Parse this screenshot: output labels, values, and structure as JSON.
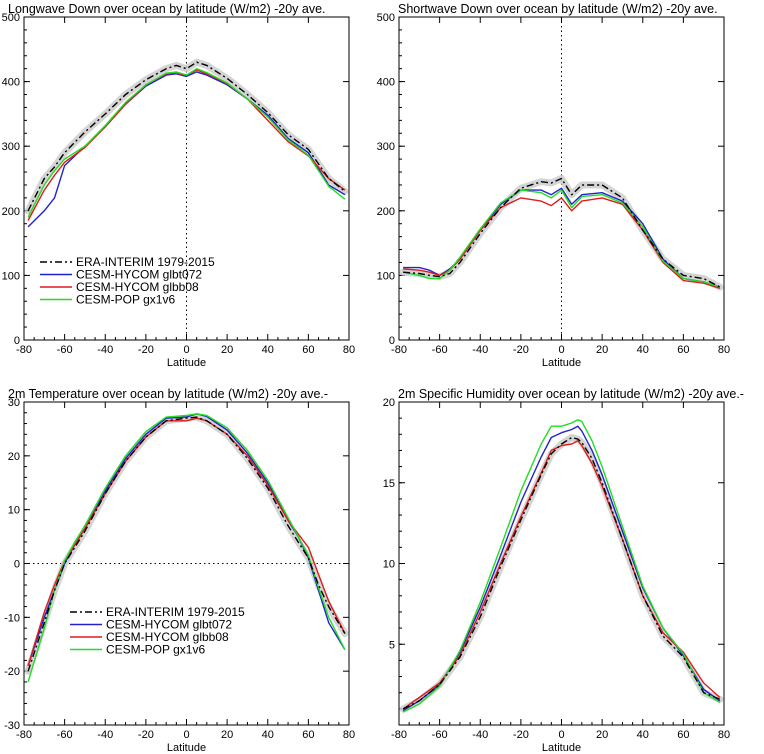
{
  "colors": {
    "era": "#000000",
    "era_band": "#c9c9c9",
    "glbt072": "#2222cc",
    "glbb08": "#e01b1b",
    "gx1v6": "#22dd22",
    "axis": "#000000"
  },
  "chart_data": [
    {
      "type": "line",
      "title": "Longwave Down over ocean by latitude (W/m2) -20y ave.",
      "xlabel": "Latitude",
      "ylabel": "",
      "xlim": [
        -80,
        80
      ],
      "ylim": [
        0,
        500
      ],
      "xticks": [
        -80,
        -60,
        -40,
        -20,
        0,
        20,
        40,
        60,
        80
      ],
      "yticks": [
        0,
        100,
        200,
        300,
        400,
        500
      ],
      "ref_vline": 0,
      "legend": {
        "placement": "lower-left",
        "entries": [
          "ERA-INTERIM 1979-2015",
          "CESM-HYCOM glbt072",
          "CESM-HYCOM glbb08",
          "CESM-POP gx1v6"
        ]
      },
      "x": [
        -78,
        -70,
        -65,
        -60,
        -50,
        -40,
        -30,
        -20,
        -10,
        -5,
        0,
        5,
        10,
        20,
        30,
        40,
        50,
        60,
        70,
        78
      ],
      "series": [
        {
          "name": "ERA-INTERIM 1979-2015",
          "style": "dashdot",
          "key": "era",
          "values": [
            200,
            250,
            268,
            290,
            322,
            350,
            380,
            403,
            420,
            425,
            420,
            430,
            425,
            405,
            380,
            352,
            318,
            295,
            250,
            230
          ]
        },
        {
          "name": "CESM-HYCOM glbt072",
          "style": "solid",
          "key": "glbt072",
          "values": [
            175,
            200,
            220,
            270,
            300,
            330,
            365,
            393,
            410,
            412,
            408,
            415,
            410,
            395,
            373,
            348,
            312,
            290,
            240,
            225
          ]
        },
        {
          "name": "CESM-HYCOM glbb08",
          "style": "solid",
          "key": "glbb08",
          "values": [
            185,
            232,
            255,
            275,
            298,
            330,
            365,
            395,
            412,
            413,
            410,
            418,
            412,
            397,
            373,
            340,
            307,
            285,
            250,
            232
          ]
        },
        {
          "name": "CESM-POP gx1v6",
          "style": "solid",
          "key": "gx1v6",
          "values": [
            190,
            240,
            262,
            280,
            300,
            332,
            368,
            395,
            413,
            415,
            410,
            420,
            414,
            398,
            373,
            345,
            310,
            286,
            238,
            218
          ]
        }
      ]
    },
    {
      "type": "line",
      "title": "Shortwave Down over ocean by latitude (W/m2) -20y ave.",
      "xlabel": "Latitude",
      "ylabel": "",
      "xlim": [
        -80,
        80
      ],
      "ylim": [
        0,
        500
      ],
      "xticks": [
        -80,
        -60,
        -40,
        -20,
        0,
        20,
        40,
        60,
        80
      ],
      "yticks": [
        0,
        100,
        200,
        300,
        400,
        500
      ],
      "ref_vline": 0,
      "x": [
        -78,
        -70,
        -65,
        -60,
        -55,
        -50,
        -40,
        -30,
        -20,
        -10,
        -5,
        0,
        5,
        10,
        20,
        30,
        40,
        50,
        60,
        70,
        78
      ],
      "series": [
        {
          "name": "ERA-INTERIM 1979-2015",
          "style": "dashdot",
          "key": "era",
          "values": [
            105,
            103,
            100,
            98,
            103,
            120,
            165,
            205,
            235,
            245,
            243,
            250,
            225,
            240,
            240,
            220,
            170,
            125,
            100,
            95,
            82
          ]
        },
        {
          "name": "CESM-HYCOM glbt072",
          "style": "solid",
          "key": "glbt072",
          "values": [
            112,
            112,
            108,
            100,
            110,
            125,
            170,
            210,
            232,
            232,
            225,
            235,
            210,
            225,
            228,
            215,
            180,
            125,
            95,
            90,
            82
          ]
        },
        {
          "name": "CESM-HYCOM glbb08",
          "style": "solid",
          "key": "glbb08",
          "values": [
            110,
            108,
            105,
            100,
            108,
            125,
            170,
            205,
            220,
            215,
            208,
            220,
            200,
            215,
            220,
            210,
            170,
            120,
            92,
            88,
            80
          ]
        },
        {
          "name": "CESM-POP gx1v6",
          "style": "solid",
          "key": "gx1v6",
          "values": [
            105,
            100,
            95,
            95,
            108,
            128,
            172,
            212,
            232,
            228,
            220,
            232,
            205,
            222,
            225,
            212,
            175,
            122,
            95,
            90,
            82
          ]
        }
      ]
    },
    {
      "type": "line",
      "title": "2m Temperature over ocean by latitude (W/m2) -20y ave.-",
      "xlabel": "Latitude",
      "ylabel": "",
      "xlim": [
        -80,
        80
      ],
      "ylim": [
        -30,
        30
      ],
      "xticks": [
        -80,
        -60,
        -40,
        -20,
        0,
        20,
        40,
        60,
        80
      ],
      "yticks": [
        -30,
        -20,
        -10,
        0,
        10,
        20,
        30
      ],
      "ref_hline": 0,
      "legend": {
        "placement": "lower-left",
        "entries": [
          "ERA-INTERIM 1979-2015",
          "CESM-HYCOM glbt072",
          "CESM-HYCOM glbb08",
          "CESM-POP gx1v6"
        ]
      },
      "x": [
        -78,
        -70,
        -65,
        -60,
        -55,
        -50,
        -40,
        -30,
        -20,
        -10,
        0,
        5,
        10,
        20,
        30,
        40,
        50,
        55,
        60,
        65,
        70,
        78
      ],
      "series": [
        {
          "name": "ERA-INTERIM 1979-2015",
          "style": "dashdot",
          "key": "era",
          "values": [
            -20,
            -11,
            -5,
            0,
            3,
            6,
            13,
            19,
            23.5,
            26.5,
            27,
            27.2,
            26.5,
            24,
            19.5,
            14,
            7,
            4,
            1,
            -4,
            -8,
            -13
          ]
        },
        {
          "name": "CESM-HYCOM glbt072",
          "style": "solid",
          "key": "glbt072",
          "values": [
            -19,
            -10,
            -5,
            0,
            3.5,
            6.5,
            13.5,
            19.5,
            24,
            27,
            27.2,
            27.8,
            27.3,
            24.8,
            20.5,
            15,
            8,
            5,
            1,
            -5,
            -11,
            -16
          ]
        },
        {
          "name": "CESM-HYCOM glbb08",
          "style": "solid",
          "key": "glbb08",
          "values": [
            -19,
            -9,
            -4,
            0.5,
            3.5,
            6.5,
            13,
            19,
            23.5,
            26.5,
            26.5,
            27,
            26.5,
            24,
            20,
            14.5,
            8,
            5.5,
            3,
            -2,
            -7,
            -13
          ]
        },
        {
          "name": "CESM-POP gx1v6",
          "style": "solid",
          "key": "gx1v6",
          "values": [
            -22,
            -12,
            -5,
            0.5,
            4,
            7,
            14,
            20,
            24.5,
            27.2,
            27.5,
            27.8,
            27.5,
            25.2,
            21,
            15.5,
            8.5,
            5,
            1.5,
            -4.5,
            -10,
            -16
          ]
        }
      ]
    },
    {
      "type": "line",
      "title": "2m Specific Humidity over ocean by latitude (W/m2) -20y ave.-",
      "xlabel": "Latitude",
      "ylabel": "",
      "xlim": [
        -80,
        80
      ],
      "ylim": [
        0,
        20
      ],
      "xticks": [
        -80,
        -60,
        -40,
        -20,
        0,
        20,
        40,
        60,
        80
      ],
      "yticks": [
        5,
        10,
        15,
        20
      ],
      "x": [
        -78,
        -70,
        -60,
        -50,
        -40,
        -30,
        -20,
        -10,
        -5,
        0,
        5,
        8,
        10,
        15,
        20,
        30,
        40,
        50,
        60,
        70,
        78
      ],
      "series": [
        {
          "name": "ERA-INTERIM 1979-2015",
          "style": "dashdot",
          "key": "era",
          "values": [
            1,
            1.5,
            2.5,
            4.2,
            6.7,
            9.8,
            12.7,
            15.5,
            16.8,
            17.4,
            17.8,
            17.7,
            17.5,
            16.5,
            15,
            11.5,
            8,
            5.5,
            4.2,
            2,
            1.6
          ]
        },
        {
          "name": "CESM-HYCOM glbt072",
          "style": "solid",
          "key": "glbt072",
          "values": [
            0.9,
            1.5,
            2.5,
            4.5,
            7.3,
            10.5,
            13.8,
            16.6,
            17.8,
            18.1,
            18.3,
            18.5,
            18.2,
            17,
            15.5,
            12,
            8.5,
            6,
            4.3,
            2.2,
            1.5
          ]
        },
        {
          "name": "CESM-HYCOM glbb08",
          "style": "solid",
          "key": "glbb08",
          "values": [
            1,
            1.7,
            2.6,
            4.3,
            7,
            10,
            12.9,
            15.6,
            17,
            17.3,
            17.4,
            17.6,
            17.3,
            16.2,
            14.8,
            11.5,
            8,
            5.7,
            4.5,
            2.6,
            1.7
          ]
        },
        {
          "name": "CESM-POP gx1v6",
          "style": "solid",
          "key": "gx1v6",
          "values": [
            0.8,
            1.3,
            2.4,
            4.6,
            7.6,
            11,
            14.5,
            17.4,
            18.5,
            18.5,
            18.7,
            18.9,
            18.8,
            17.6,
            16,
            12.3,
            8.6,
            6,
            4.4,
            2,
            1.4
          ]
        }
      ]
    }
  ]
}
